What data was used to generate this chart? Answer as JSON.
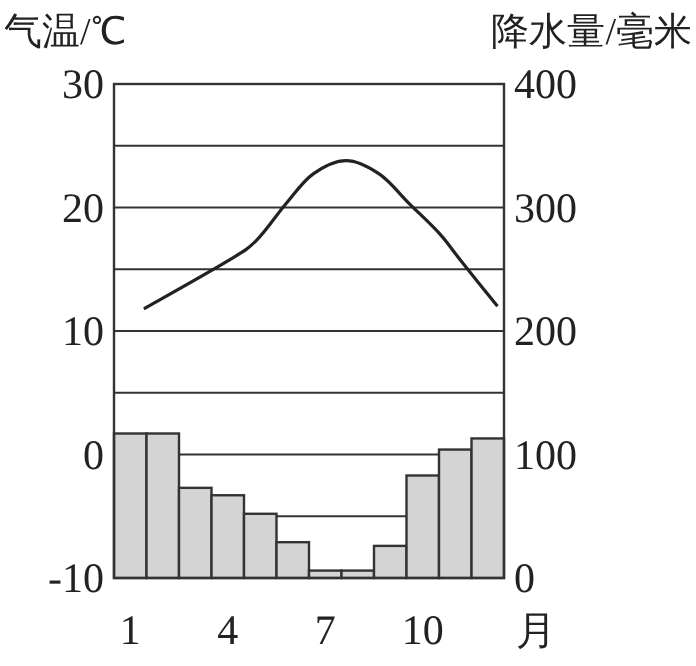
{
  "chart_data": {
    "type": "bar",
    "ylabel": "气温/℃",
    "y2label": "降水量/毫米",
    "xlabel": "月",
    "x": [
      1,
      2,
      3,
      4,
      5,
      6,
      7,
      8,
      9,
      10,
      11,
      12
    ],
    "xlim": [
      0.5,
      12.5
    ],
    "xticks": [
      1,
      4,
      7,
      10
    ],
    "ylim": [
      -10,
      30
    ],
    "yticks": [
      -10,
      {
        "value": -5,
        "label": null
      },
      0,
      {
        "value": 5,
        "label": null
      },
      10,
      {
        "value": 15,
        "label": null
      },
      20,
      {
        "value": 25,
        "label": null
      },
      30
    ],
    "y2lim": [
      0,
      400
    ],
    "y2ticks": [
      0,
      100,
      200,
      300,
      400
    ],
    "grid": "y",
    "series": [
      {
        "axis": "y2",
        "color": "#d4d4d4",
        "values": [
          117,
          117,
          73,
          67,
          52,
          29,
          6,
          6,
          26,
          83,
          104,
          113
        ]
      },
      {
        "type": "line",
        "axis": "y",
        "color": "#222222",
        "x": [
          1.42,
          3.95,
          4.87,
          5.79,
          6.62,
          7.64,
          8.67,
          9.59,
          10.51,
          11.23,
          12.3
        ],
        "values": [
          11.8,
          15.6,
          17.3,
          20.3,
          22.7,
          23.8,
          22.7,
          20.3,
          17.9,
          15.5,
          12.0
        ]
      }
    ]
  }
}
